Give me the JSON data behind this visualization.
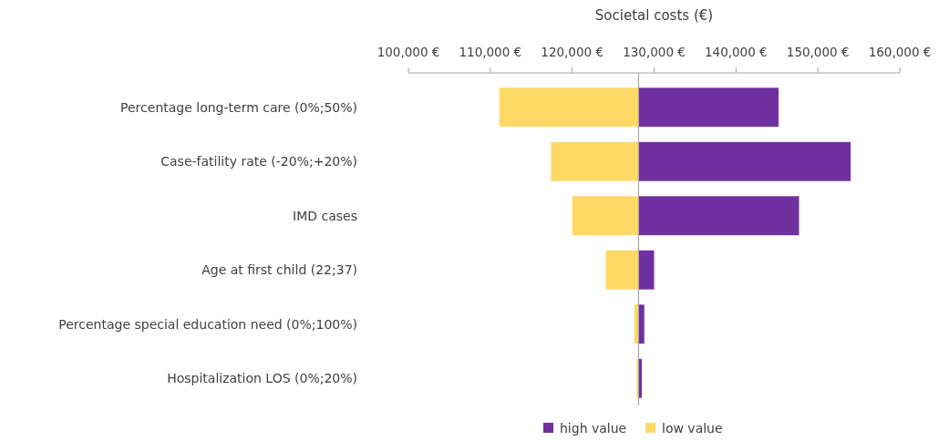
{
  "chart_data": {
    "type": "bar",
    "orientation": "horizontal",
    "xlabel": "Societal costs (€)",
    "categories": [
      "Percentage long-term care (0%;50%)",
      "Case-fatility rate (-20%;+20%)",
      "IMD cases",
      "Age at first child (22;37)",
      "Percentage special education need (0%;100%)",
      "Hospitalization LOS (0%;20%)"
    ],
    "series": [
      {
        "name": "high value",
        "color": "#7030a0",
        "base": [
          128100,
          128100,
          128100,
          128100,
          128100,
          128100
        ],
        "values": [
          17100,
          25900,
          19600,
          1900,
          700,
          400
        ]
      },
      {
        "name": "low value",
        "color": "#ffd966",
        "base": [
          111100,
          117400,
          120000,
          124100,
          127600,
          127900
        ],
        "values": [
          17000,
          10700,
          8100,
          4000,
          500,
          200
        ]
      }
    ],
    "xlim": [
      100000,
      160000
    ],
    "xticks": [
      {
        "value": 100000,
        "label": "100,000 €"
      },
      {
        "value": 110000,
        "label": "110,000 €"
      },
      {
        "value": 120000,
        "label": "120,000 €"
      },
      {
        "value": 130000,
        "label": "130,000 €"
      },
      {
        "value": 140000,
        "label": "140,000 €"
      },
      {
        "value": 150000,
        "label": "150,000 €"
      },
      {
        "value": 160000,
        "label": "160,000 €"
      }
    ],
    "ref_lines": [
      {
        "axis": "x",
        "value": 128100,
        "color": "#a6a6a6"
      }
    ],
    "legend": "bottom",
    "grid": false
  }
}
